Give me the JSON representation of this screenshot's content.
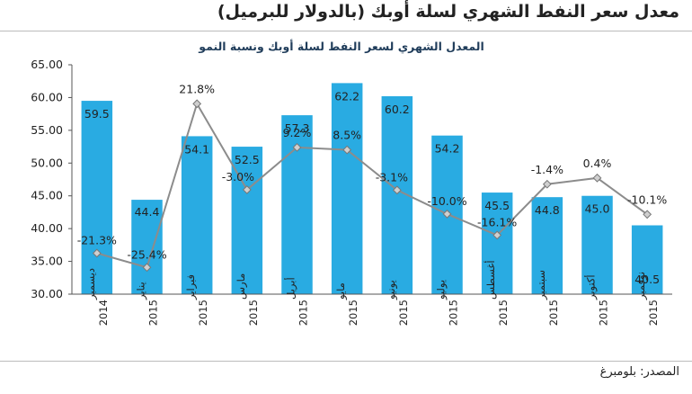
{
  "page": {
    "title": "معدل سعر النفط الشهري لسلة أوبك (بالدولار للبرميل)",
    "source": "المصدر: بلومبرغ"
  },
  "chart_data": {
    "type": "bar",
    "title": "المعدل الشهري لسعر النفط لسلة أوبك ونسبة النمو",
    "categories": [
      [
        "ديسمبر",
        "2014"
      ],
      [
        "يناير",
        "2015"
      ],
      [
        "فبراير",
        "2015"
      ],
      [
        "مارس",
        "2015"
      ],
      [
        "أبريل",
        "2015"
      ],
      [
        "مايو",
        "2015"
      ],
      [
        "يونيو",
        "2015"
      ],
      [
        "يوليو",
        "2015"
      ],
      [
        "أغسطس",
        "2015"
      ],
      [
        "سبتمبر",
        "2015"
      ],
      [
        "أكتوبر",
        "2015"
      ],
      [
        "نوفمبر",
        "2015"
      ]
    ],
    "series": [
      {
        "type": "bar",
        "values": [
          59.5,
          44.4,
          54.1,
          52.5,
          57.3,
          62.2,
          60.2,
          54.2,
          45.5,
          44.8,
          45.0,
          40.5
        ],
        "labels": [
          "59.5",
          "44.4",
          "54.1",
          "52.5",
          "57.3",
          "62.2",
          "60.2",
          "54.2",
          "45.5",
          "44.8",
          "45.0",
          "40.5"
        ],
        "color": "#29ABE2"
      },
      {
        "type": "line",
        "values": [
          -21.3,
          -25.4,
          21.8,
          -3.0,
          9.2,
          8.5,
          -3.1,
          -10.0,
          -16.1,
          -1.4,
          0.4,
          -10.1
        ],
        "labels": [
          "-21.3%",
          "-25.4%",
          "21.8%",
          "-3.0%",
          "9.2%",
          "8.5%",
          "-3.1%",
          "-10.0%",
          "-16.1%",
          "-1.4%",
          "0.4%",
          "-10.1%"
        ],
        "color": "#8C8C8C"
      }
    ],
    "y_axis": {
      "ticks": [
        "30.00",
        "35.00",
        "40.00",
        "45.00",
        "50.00",
        "55.00",
        "60.00",
        "65.00"
      ],
      "range": [
        30,
        65
      ]
    },
    "grid": false,
    "legend": "none"
  }
}
